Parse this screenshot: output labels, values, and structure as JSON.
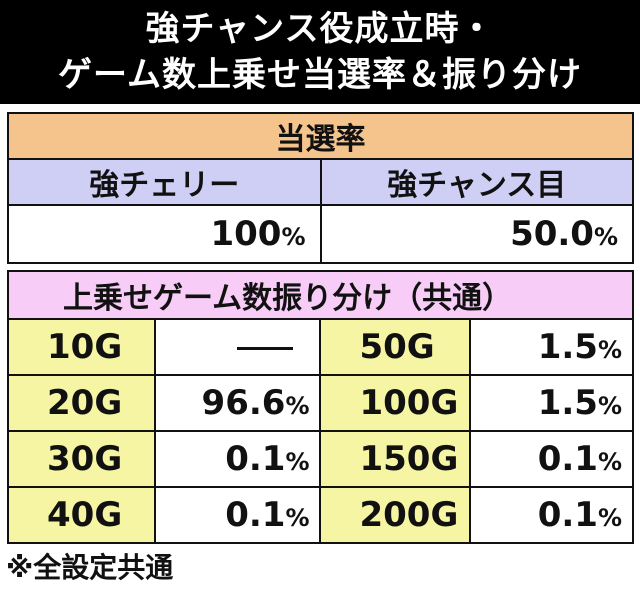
{
  "title": {
    "line1": "強チャンス役成立時・",
    "line2": "ゲーム数上乗せ当選率＆振り分け"
  },
  "win_rate": {
    "header": "当選率",
    "columns": [
      "強チェリー",
      "強チャンス目"
    ],
    "values": [
      "100",
      "50.0"
    ],
    "unit": "%"
  },
  "distribution": {
    "header": "上乗せゲーム数振り分け（共通）",
    "unit": "%",
    "rows": [
      {
        "left_label": "10G",
        "left_value": "",
        "left_dash": true,
        "right_label": "50G",
        "right_value": "1.5"
      },
      {
        "left_label": "20G",
        "left_value": "96.6",
        "left_dash": false,
        "right_label": "100G",
        "right_value": "1.5"
      },
      {
        "left_label": "30G",
        "left_value": "0.1",
        "left_dash": false,
        "right_label": "150G",
        "right_value": "0.1"
      },
      {
        "left_label": "40G",
        "left_value": "0.1",
        "left_dash": false,
        "right_label": "200G",
        "right_value": "0.1"
      }
    ]
  },
  "note": "※全設定共通"
}
